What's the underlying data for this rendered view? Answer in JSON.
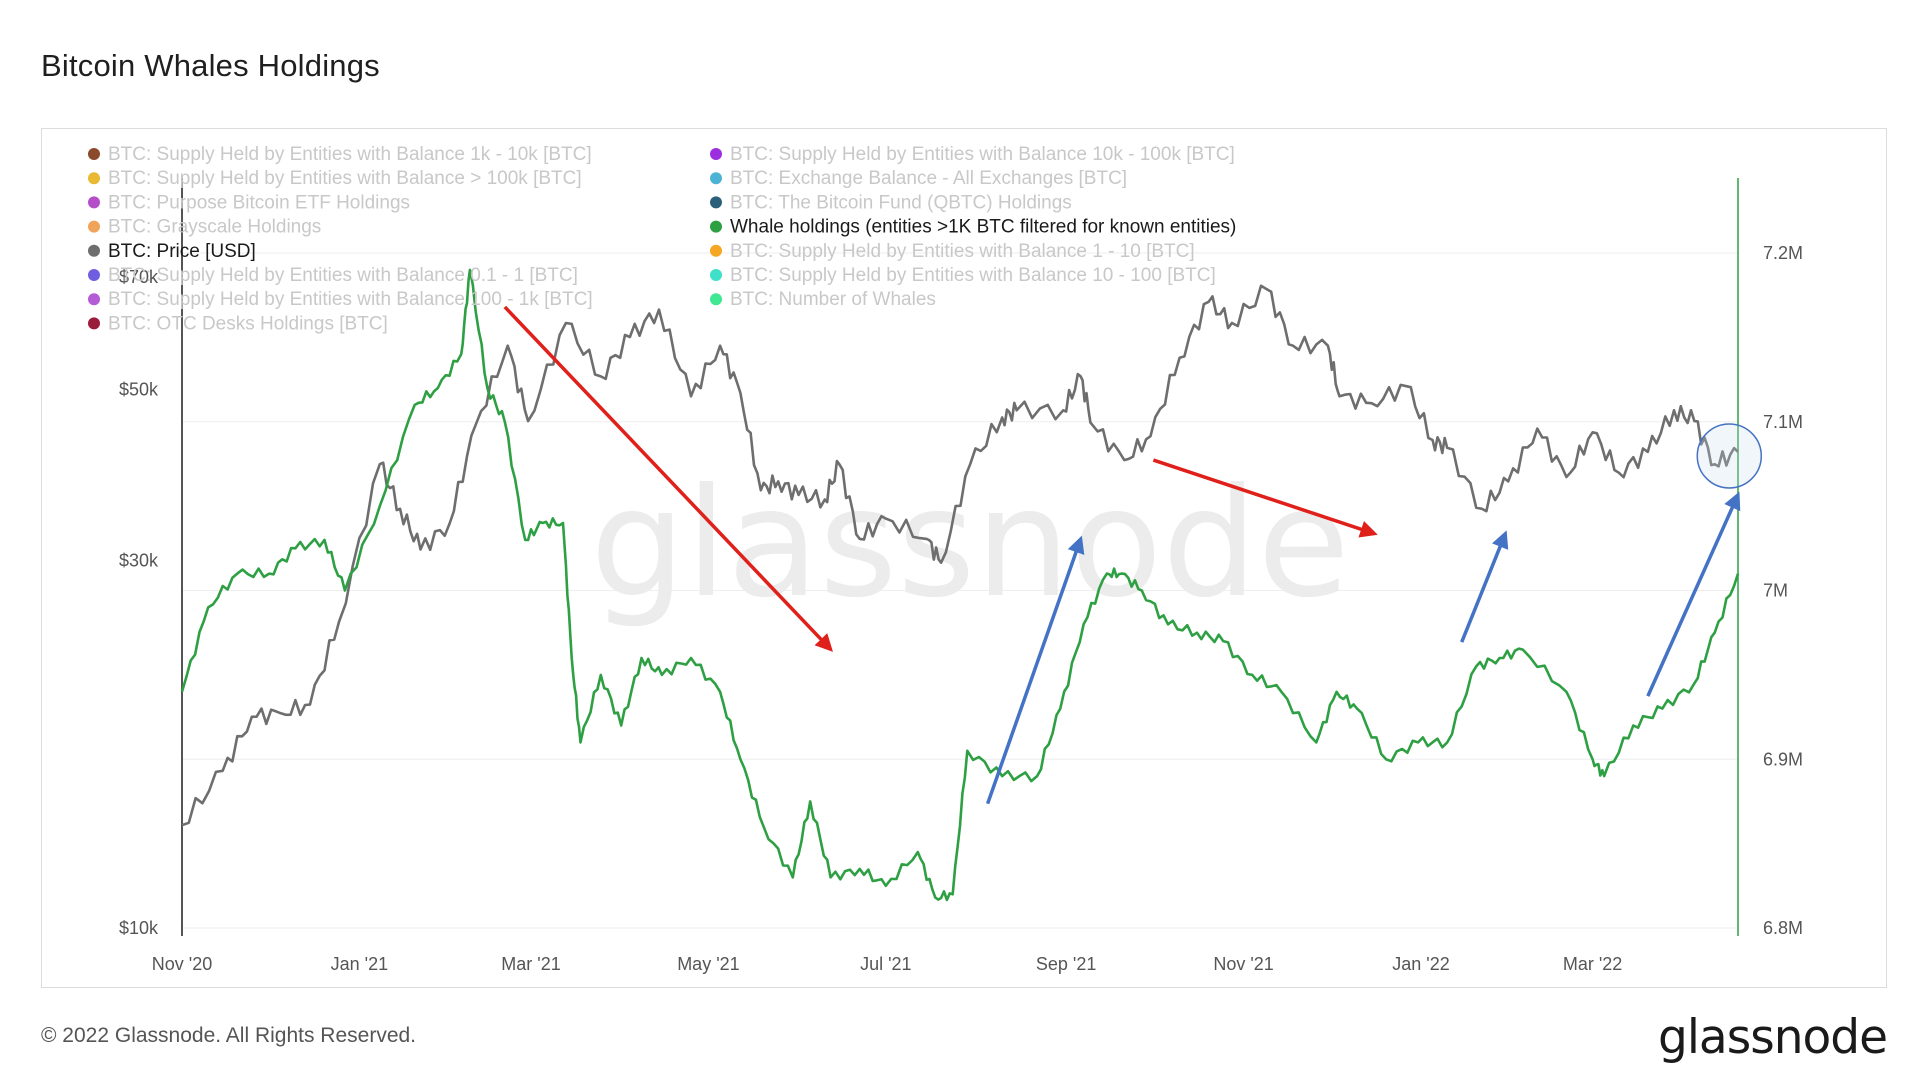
{
  "title": "Bitcoin Whales Holdings",
  "footer": "© 2022 Glassnode. All Rights Reserved.",
  "brand": "glassnode",
  "watermark": "glassnode",
  "colors": {
    "price": "#6e6e6e",
    "whale": "#2ea043",
    "red_arrow": "#e0201b",
    "blue_arrow": "#4472c4",
    "right_axis_line": "#2ea043",
    "grid": "#eeeeee"
  },
  "legend": [
    {
      "label": "BTC: Supply Held by Entities with Balance 1k - 10k [BTC]",
      "color": "#8b4a2b",
      "active": false
    },
    {
      "label": "BTC: Supply Held by Entities with Balance > 100k [BTC]",
      "color": "#e8b931",
      "active": false
    },
    {
      "label": "BTC: Purpose Bitcoin ETF Holdings",
      "color": "#b44fc9",
      "active": false
    },
    {
      "label": "BTC: Grayscale Holdings",
      "color": "#f0a45a",
      "active": false
    },
    {
      "label": "BTC: Price [USD]",
      "color": "#6e6e6e",
      "active": true
    },
    {
      "label": "BTC: Supply Held by Entities with Balance 0.1 - 1 [BTC]",
      "color": "#6f5fe0",
      "active": false
    },
    {
      "label": "BTC: Supply Held by Entities with Balance 100 - 1k [BTC]",
      "color": "#b45bd6",
      "active": false
    },
    {
      "label": "BTC: OTC Desks Holdings [BTC]",
      "color": "#9b1b3a",
      "active": false
    },
    {
      "label": "BTC: Supply Held by Entities with Balance 10k - 100k [BTC]",
      "color": "#9b2fe0",
      "active": false
    },
    {
      "label": "BTC: Exchange Balance - All Exchanges [BTC]",
      "color": "#4cb3d4",
      "active": false
    },
    {
      "label": "BTC: The Bitcoin Fund (QBTC) Holdings",
      "color": "#2b5f7a",
      "active": false
    },
    {
      "label": "Whale holdings (entities >1K BTC filtered for known entities)",
      "color": "#2ea043",
      "active": true
    },
    {
      "label": "BTC: Supply Held by Entities with Balance 1 - 10 [BTC]",
      "color": "#f5a623",
      "active": false
    },
    {
      "label": "BTC: Supply Held by Entities with Balance 10 - 100 [BTC]",
      "color": "#3ee0c8",
      "active": false
    },
    {
      "label": "BTC: Number of Whales",
      "color": "#3ee892",
      "active": false
    }
  ],
  "chart_data": {
    "type": "line",
    "title": "Bitcoin Whales Holdings",
    "x_range": [
      "2020-11-01",
      "2022-04-20"
    ],
    "x_ticks": [
      "Nov '20",
      "Jan '21",
      "Mar '21",
      "May '21",
      "Jul '21",
      "Sep '21",
      "Nov '21",
      "Jan '22",
      "Mar '22"
    ],
    "y_left": {
      "scale": "log",
      "ticks": [
        "$10k",
        "$30k",
        "$50k",
        "$70k"
      ],
      "tick_values": [
        10000,
        30000,
        50000,
        70000
      ]
    },
    "y_right": {
      "ticks": [
        "6.8M",
        "6.9M",
        "7M",
        "7.1M",
        "7.2M"
      ],
      "tick_values": [
        6800000,
        6900000,
        7000000,
        7100000,
        7200000
      ],
      "range": [
        6800000,
        7250000
      ]
    },
    "grid": true,
    "legend_position": "top-left",
    "series": [
      {
        "name": "BTC: Price [USD]",
        "axis": "left",
        "points": [
          [
            "2020-11-01",
            13600
          ],
          [
            "2020-11-15",
            16000
          ],
          [
            "2020-11-25",
            18800
          ],
          [
            "2020-12-05",
            19000
          ],
          [
            "2020-12-15",
            19500
          ],
          [
            "2020-12-25",
            25000
          ],
          [
            "2021-01-08",
            40000
          ],
          [
            "2021-01-15",
            35000
          ],
          [
            "2021-01-22",
            31000
          ],
          [
            "2021-02-01",
            33500
          ],
          [
            "2021-02-10",
            45000
          ],
          [
            "2021-02-21",
            57000
          ],
          [
            "2021-02-28",
            45500
          ],
          [
            "2021-03-13",
            61000
          ],
          [
            "2021-03-25",
            52000
          ],
          [
            "2021-04-04",
            58500
          ],
          [
            "2021-04-14",
            63500
          ],
          [
            "2021-04-25",
            49000
          ],
          [
            "2021-05-05",
            57000
          ],
          [
            "2021-05-12",
            49500
          ],
          [
            "2021-05-19",
            37000
          ],
          [
            "2021-05-25",
            38000
          ],
          [
            "2021-06-01",
            36500
          ],
          [
            "2021-06-10",
            36000
          ],
          [
            "2021-06-15",
            40000
          ],
          [
            "2021-06-22",
            32000
          ],
          [
            "2021-07-01",
            34000
          ],
          [
            "2021-07-15",
            32000
          ],
          [
            "2021-07-20",
            29800
          ],
          [
            "2021-07-30",
            40000
          ],
          [
            "2021-08-10",
            46000
          ],
          [
            "2021-08-15",
            47000
          ],
          [
            "2021-08-31",
            47000
          ],
          [
            "2021-09-06",
            52000
          ],
          [
            "2021-09-10",
            45000
          ],
          [
            "2021-09-21",
            40500
          ],
          [
            "2021-09-30",
            43500
          ],
          [
            "2021-10-10",
            55000
          ],
          [
            "2021-10-20",
            65000
          ],
          [
            "2021-10-28",
            61000
          ],
          [
            "2021-11-09",
            67500
          ],
          [
            "2021-11-18",
            57000
          ],
          [
            "2021-11-30",
            57000
          ],
          [
            "2021-12-04",
            49000
          ],
          [
            "2021-12-15",
            48000
          ],
          [
            "2021-12-27",
            50500
          ],
          [
            "2022-01-05",
            43000
          ],
          [
            "2022-01-10",
            42000
          ],
          [
            "2022-01-22",
            35000
          ],
          [
            "2022-01-31",
            38000
          ],
          [
            "2022-02-10",
            44500
          ],
          [
            "2022-02-20",
            38500
          ],
          [
            "2022-03-01",
            44000
          ],
          [
            "2022-03-10",
            39000
          ],
          [
            "2022-03-20",
            41500
          ],
          [
            "2022-03-29",
            47000
          ],
          [
            "2022-04-05",
            45500
          ],
          [
            "2022-04-12",
            40000
          ],
          [
            "2022-04-20",
            41500
          ]
        ]
      },
      {
        "name": "Whale holdings (entities >1K BTC filtered for known entities)",
        "axis": "right",
        "points": [
          [
            "2020-11-01",
            6940000
          ],
          [
            "2020-11-10",
            6990000
          ],
          [
            "2020-11-20",
            7010000
          ],
          [
            "2020-12-01",
            7010000
          ],
          [
            "2020-12-10",
            7025000
          ],
          [
            "2020-12-20",
            7030000
          ],
          [
            "2020-12-27",
            7000000
          ],
          [
            "2021-01-08",
            7050000
          ],
          [
            "2021-01-20",
            7110000
          ],
          [
            "2021-01-28",
            7120000
          ],
          [
            "2021-02-05",
            7140000
          ],
          [
            "2021-02-08",
            7190000
          ],
          [
            "2021-02-14",
            7120000
          ],
          [
            "2021-02-20",
            7100000
          ],
          [
            "2021-02-27",
            7030000
          ],
          [
            "2021-03-05",
            7040000
          ],
          [
            "2021-03-12",
            7040000
          ],
          [
            "2021-03-15",
            6960000
          ],
          [
            "2021-03-18",
            6910000
          ],
          [
            "2021-03-25",
            6950000
          ],
          [
            "2021-04-01",
            6920000
          ],
          [
            "2021-04-08",
            6960000
          ],
          [
            "2021-04-15",
            6950000
          ],
          [
            "2021-04-25",
            6960000
          ],
          [
            "2021-05-05",
            6940000
          ],
          [
            "2021-05-12",
            6900000
          ],
          [
            "2021-05-20",
            6860000
          ],
          [
            "2021-05-30",
            6830000
          ],
          [
            "2021-06-05",
            6875000
          ],
          [
            "2021-06-12",
            6830000
          ],
          [
            "2021-06-22",
            6835000
          ],
          [
            "2021-07-01",
            6825000
          ],
          [
            "2021-07-12",
            6845000
          ],
          [
            "2021-07-18",
            6818000
          ],
          [
            "2021-07-24",
            6820000
          ],
          [
            "2021-07-29",
            6905000
          ],
          [
            "2021-08-10",
            6890000
          ],
          [
            "2021-08-22",
            6890000
          ],
          [
            "2021-08-30",
            6930000
          ],
          [
            "2021-09-07",
            6980000
          ],
          [
            "2021-09-15",
            7010000
          ],
          [
            "2021-09-20",
            7010000
          ],
          [
            "2021-09-27",
            7000000
          ],
          [
            "2021-10-06",
            6980000
          ],
          [
            "2021-10-16",
            6975000
          ],
          [
            "2021-10-25",
            6970000
          ],
          [
            "2021-11-04",
            6950000
          ],
          [
            "2021-11-14",
            6940000
          ],
          [
            "2021-11-26",
            6910000
          ],
          [
            "2021-12-03",
            6940000
          ],
          [
            "2021-12-10",
            6930000
          ],
          [
            "2021-12-20",
            6900000
          ],
          [
            "2021-12-31",
            6910000
          ],
          [
            "2022-01-10",
            6910000
          ],
          [
            "2022-01-20",
            6955000
          ],
          [
            "2022-01-28",
            6960000
          ],
          [
            "2022-02-05",
            6965000
          ],
          [
            "2022-02-20",
            6940000
          ],
          [
            "2022-03-01",
            6900000
          ],
          [
            "2022-03-05",
            6890000
          ],
          [
            "2022-03-15",
            6920000
          ],
          [
            "2022-03-25",
            6930000
          ],
          [
            "2022-04-05",
            6945000
          ],
          [
            "2022-04-12",
            6975000
          ],
          [
            "2022-04-20",
            7010000
          ]
        ]
      }
    ],
    "annotations": [
      {
        "type": "arrow",
        "color": "red",
        "from": [
          "2021-02-20",
          64000
        ],
        "to": [
          "2021-06-12",
          23000
        ]
      },
      {
        "type": "arrow",
        "color": "red",
        "from": [
          "2021-10-01",
          40500
        ],
        "to": [
          "2021-12-16",
          32500
        ]
      },
      {
        "type": "arrow",
        "color": "blue",
        "from": [
          "2021-08-05",
          14500
        ],
        "to": [
          "2021-09-06",
          32000
        ]
      },
      {
        "type": "arrow",
        "color": "blue",
        "from": [
          "2022-01-15",
          23500
        ],
        "to": [
          "2022-01-30",
          32500
        ]
      },
      {
        "type": "arrow",
        "color": "blue",
        "from": [
          "2022-03-20",
          20000
        ],
        "to": [
          "2022-04-20",
          36500
        ]
      },
      {
        "type": "circle",
        "center": [
          "2022-04-17",
          41000
        ]
      }
    ]
  }
}
